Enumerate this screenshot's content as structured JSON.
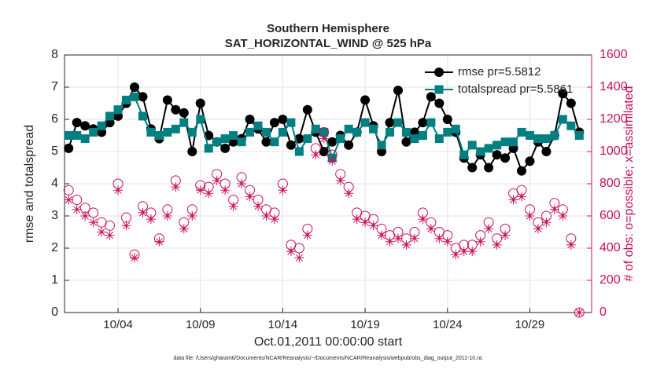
{
  "chart_data": {
    "type": "line",
    "title": "Southern Hemisphere",
    "subtitle": "SAT_HORIZONTAL_WIND @ 525 hPa",
    "xlabel": "Oct.01,2011 00:00:00 start",
    "ylabel": "rmse and totalspread",
    "y2label": "# of obs: o=possible; x=assimilated",
    "footnote": "data file: /Users/gharamti/Documents/NCAR/Reanalysis/~/Documents/NCAR/Reanalysis/webpub/obs_diag_output_2011-10.nc",
    "x": [
      1,
      1.5,
      2,
      2.5,
      3,
      3.5,
      4,
      4.5,
      5,
      5.5,
      6,
      6.5,
      7,
      7.5,
      8,
      8.5,
      9,
      9.5,
      10,
      10.5,
      11,
      11.5,
      12,
      12.5,
      13,
      13.5,
      14,
      14.5,
      15,
      15.5,
      16,
      16.5,
      17,
      17.5,
      18,
      18.5,
      19,
      19.5,
      20,
      20.5,
      21,
      21.5,
      22,
      22.5,
      23,
      23.5,
      24,
      24.5,
      25,
      25.5,
      26,
      26.5,
      27,
      27.5,
      28,
      28.5,
      29,
      29.5,
      30,
      30.5,
      31,
      31.5,
      32
    ],
    "xlim": [
      0.75,
      32.75
    ],
    "xticks": [
      {
        "value": 4,
        "label": "10/04"
      },
      {
        "value": 9,
        "label": "10/09"
      },
      {
        "value": 14,
        "label": "10/14"
      },
      {
        "value": 19,
        "label": "10/19"
      },
      {
        "value": 24,
        "label": "10/24"
      },
      {
        "value": 29,
        "label": "10/29"
      }
    ],
    "ylim": [
      0,
      8
    ],
    "yticks": [
      0,
      1,
      2,
      3,
      4,
      5,
      6,
      7,
      8
    ],
    "y2lim": [
      0,
      1600
    ],
    "y2ticks": [
      0,
      200,
      400,
      600,
      800,
      1000,
      1200,
      1400,
      1600
    ],
    "y2color": "#c8105a",
    "grid": true,
    "legend": "top-right",
    "series": [
      {
        "name": "rmse pr=5.5812",
        "color": "#000000",
        "marker": "circle",
        "line": true,
        "values": [
          5.1,
          5.9,
          5.8,
          5.7,
          5.6,
          5.9,
          6.1,
          6.5,
          7.0,
          6.7,
          5.7,
          5.4,
          6.6,
          6.3,
          6.2,
          5.0,
          6.5,
          5.5,
          5.3,
          5.1,
          5.3,
          5.4,
          6.0,
          5.7,
          5.3,
          5.9,
          6.0,
          5.2,
          5.4,
          6.3,
          5.6,
          5.0,
          5.3,
          5.5,
          5.2,
          5.6,
          6.6,
          5.8,
          5.0,
          5.9,
          6.9,
          5.3,
          5.6,
          5.9,
          6.7,
          6.5,
          6.0,
          5.6,
          4.8,
          4.5,
          4.9,
          4.5,
          4.9,
          4.8,
          5.1,
          4.4,
          4.7,
          5.3,
          5.0,
          5.5,
          6.8,
          6.5,
          5.6
        ]
      },
      {
        "name": "totalspread pr=5.5861",
        "color": "#008080",
        "marker": "square",
        "line": true,
        "values": [
          5.5,
          5.5,
          5.4,
          5.6,
          5.8,
          6.1,
          6.3,
          6.6,
          6.7,
          6.1,
          5.6,
          5.5,
          5.6,
          5.7,
          5.9,
          5.6,
          6.0,
          5.1,
          5.3,
          5.4,
          5.5,
          5.3,
          5.6,
          5.8,
          5.6,
          5.3,
          5.6,
          5.9,
          5.0,
          5.4,
          5.7,
          5.6,
          4.8,
          5.4,
          5.7,
          5.6,
          5.9,
          5.7,
          5.2,
          5.6,
          5.9,
          5.6,
          5.4,
          5.5,
          5.9,
          5.4,
          5.6,
          5.7,
          4.9,
          5.2,
          5.0,
          5.1,
          5.2,
          5.3,
          5.3,
          5.6,
          5.5,
          5.4,
          5.4,
          5.5,
          6.0,
          5.8,
          5.5
        ]
      },
      {
        "color": "#c8105a",
        "marker": "open-circle",
        "line": false,
        "axis": "y2",
        "values": [
          760,
          700,
          650,
          620,
          560,
          540,
          800,
          590,
          360,
          660,
          620,
          460,
          640,
          820,
          560,
          640,
          790,
          780,
          860,
          800,
          700,
          840,
          760,
          700,
          640,
          620,
          800,
          420,
          400,
          520,
          1020,
          1120,
          980,
          860,
          780,
          620,
          600,
          580,
          520,
          480,
          500,
          460,
          500,
          620,
          560,
          500,
          480,
          400,
          420,
          420,
          480,
          560,
          460,
          520,
          740,
          760,
          640,
          560,
          600,
          680,
          640,
          460,
          0
        ]
      },
      {
        "color": "#c8105a",
        "marker": "asterisk",
        "line": false,
        "axis": "y2",
        "values": [
          700,
          640,
          600,
          560,
          500,
          480,
          760,
          540,
          340,
          620,
          580,
          440,
          600,
          780,
          520,
          600,
          760,
          740,
          820,
          760,
          660,
          800,
          720,
          660,
          600,
          580,
          760,
          380,
          340,
          480,
          980,
          1080,
          940,
          820,
          740,
          580,
          560,
          540,
          480,
          440,
          460,
          420,
          460,
          580,
          520,
          460,
          440,
          360,
          380,
          380,
          440,
          520,
          420,
          480,
          700,
          720,
          600,
          520,
          560,
          640,
          600,
          420,
          0
        ]
      }
    ]
  }
}
